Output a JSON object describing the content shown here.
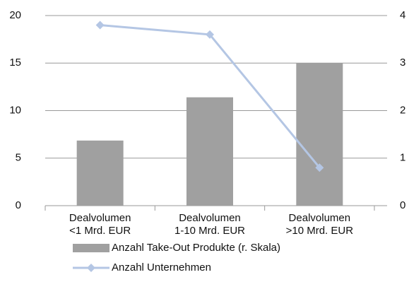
{
  "chart_data": {
    "type": "bar_line",
    "categories": [
      [
        "Dealvolumen",
        "<1 Mrd. EUR"
      ],
      [
        "Dealvolumen",
        "1-10 Mrd. EUR"
      ],
      [
        "Dealvolumen",
        ">10 Mrd. EUR"
      ]
    ],
    "series": [
      {
        "name": "Anzahl Take-Out Produkte (r. Skala)",
        "type": "bar",
        "color": "#a0a0a0",
        "axis": "y2",
        "values": [
          1.37,
          2.28,
          3.0
        ]
      },
      {
        "name": "Anzahl Unternehmen",
        "type": "line",
        "color": "#b4c6e4",
        "values": [
          19,
          18,
          4
        ]
      }
    ],
    "ylim": [
      0,
      20
    ],
    "yticks": [
      0,
      5,
      10,
      15,
      20
    ],
    "y2lim": [
      0,
      4
    ],
    "y2ticks": [
      0,
      1,
      2,
      3,
      4
    ],
    "grid": true,
    "legend": "bottom"
  }
}
